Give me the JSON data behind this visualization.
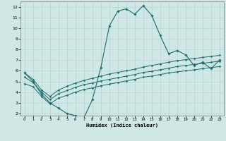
{
  "bg_color": "#cfe8e6",
  "grid_color": "#b8d8d6",
  "line_color": "#1a6b6b",
  "xlabel": "Humidex (Indice chaleur)",
  "xlim": [
    -0.5,
    23.5
  ],
  "ylim": [
    1.8,
    12.5
  ],
  "xticks": [
    0,
    1,
    2,
    3,
    4,
    5,
    6,
    7,
    8,
    9,
    10,
    11,
    12,
    13,
    14,
    15,
    16,
    17,
    18,
    19,
    20,
    21,
    22,
    23
  ],
  "yticks": [
    2,
    3,
    4,
    5,
    6,
    7,
    8,
    9,
    10,
    11,
    12
  ],
  "line1_y": [
    5.8,
    5.0,
    3.8,
    3.0,
    2.5,
    2.0,
    1.8,
    1.6,
    3.3,
    6.3,
    10.2,
    11.6,
    11.8,
    11.3,
    12.1,
    11.2,
    9.3,
    7.6,
    7.9,
    7.5,
    6.5,
    6.8,
    6.2,
    7.0
  ],
  "line2_y": [
    5.8,
    5.2,
    4.2,
    3.6,
    4.2,
    4.55,
    4.85,
    5.1,
    5.3,
    5.5,
    5.7,
    5.85,
    6.0,
    6.15,
    6.35,
    6.5,
    6.65,
    6.8,
    6.95,
    7.05,
    7.15,
    7.25,
    7.35,
    7.45
  ],
  "line3_y": [
    5.4,
    4.9,
    4.0,
    3.3,
    3.85,
    4.15,
    4.45,
    4.7,
    4.85,
    5.05,
    5.2,
    5.35,
    5.5,
    5.65,
    5.85,
    5.95,
    6.1,
    6.25,
    6.4,
    6.5,
    6.6,
    6.7,
    6.8,
    6.9
  ],
  "line4_y": [
    4.8,
    4.5,
    3.6,
    2.9,
    3.45,
    3.7,
    4.0,
    4.25,
    4.4,
    4.6,
    4.75,
    4.9,
    5.05,
    5.2,
    5.4,
    5.5,
    5.65,
    5.8,
    5.9,
    6.0,
    6.1,
    6.2,
    6.3,
    6.4
  ]
}
